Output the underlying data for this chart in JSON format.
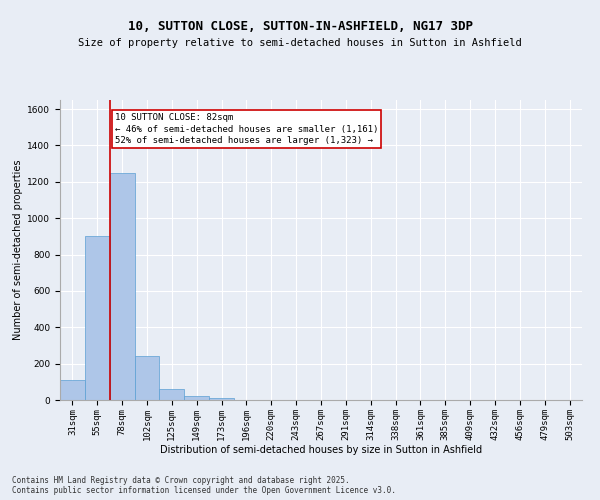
{
  "title": "10, SUTTON CLOSE, SUTTON-IN-ASHFIELD, NG17 3DP",
  "subtitle": "Size of property relative to semi-detached houses in Sutton in Ashfield",
  "xlabel": "Distribution of semi-detached houses by size in Sutton in Ashfield",
  "ylabel": "Number of semi-detached properties",
  "categories": [
    "31sqm",
    "55sqm",
    "78sqm",
    "102sqm",
    "125sqm",
    "149sqm",
    "173sqm",
    "196sqm",
    "220sqm",
    "243sqm",
    "267sqm",
    "291sqm",
    "314sqm",
    "338sqm",
    "361sqm",
    "385sqm",
    "409sqm",
    "432sqm",
    "456sqm",
    "479sqm",
    "503sqm"
  ],
  "values": [
    110,
    900,
    1250,
    240,
    60,
    20,
    10,
    0,
    0,
    0,
    0,
    0,
    0,
    0,
    0,
    0,
    0,
    0,
    0,
    0,
    0
  ],
  "bar_color": "#aec6e8",
  "bar_edge_color": "#5a9fd4",
  "vline_color": "#cc0000",
  "annotation_title": "10 SUTTON CLOSE: 82sqm",
  "annotation_line2": "← 46% of semi-detached houses are smaller (1,161)",
  "annotation_line3": "52% of semi-detached houses are larger (1,323) →",
  "annotation_box_color": "#cc0000",
  "ylim": [
    0,
    1650
  ],
  "yticks": [
    0,
    200,
    400,
    600,
    800,
    1000,
    1200,
    1400,
    1600
  ],
  "background_color": "#e8edf5",
  "grid_color": "#ffffff",
  "footer_line1": "Contains HM Land Registry data © Crown copyright and database right 2025.",
  "footer_line2": "Contains public sector information licensed under the Open Government Licence v3.0.",
  "title_fontsize": 9,
  "subtitle_fontsize": 7.5,
  "annotation_fontsize": 6.5,
  "axis_label_fontsize": 7,
  "tick_fontsize": 6.5,
  "footer_fontsize": 5.5
}
